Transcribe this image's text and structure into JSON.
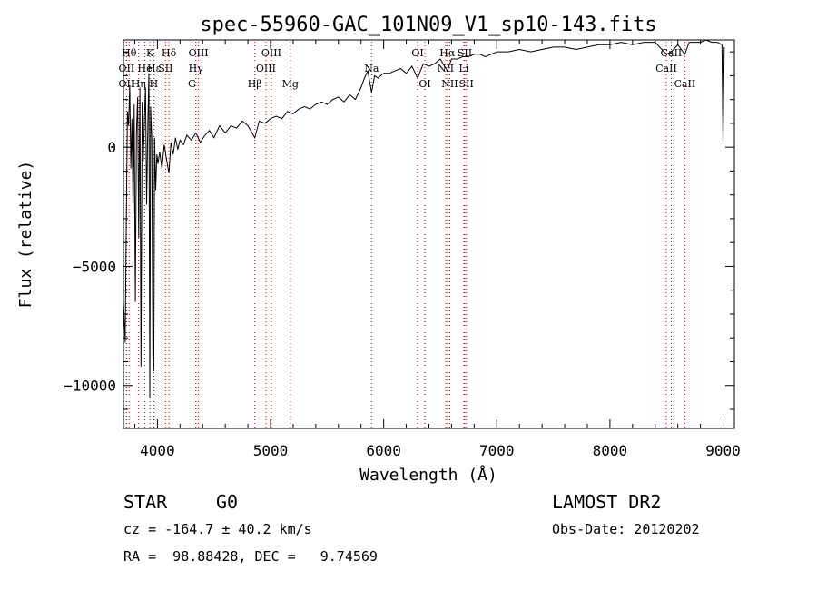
{
  "chart_data": {
    "type": "line",
    "title": "spec-55960-GAC_101N09_V1_sp10-143.fits",
    "xlabel": "Wavelength (Å)",
    "ylabel": "Flux (relative)",
    "xlim": [
      3700,
      9100
    ],
    "ylim": [
      -11800,
      4500
    ],
    "xticks": [
      4000,
      5000,
      6000,
      7000,
      8000,
      9000
    ],
    "yticks": [
      0,
      -5000,
      -10000
    ],
    "grid": false,
    "line_color": "#000000",
    "marker_color": "#cc0000",
    "series": [
      {
        "x": [
          3700,
          3715,
          3725,
          3735,
          3745,
          3755,
          3765,
          3775,
          3785,
          3795,
          3805,
          3815,
          3825,
          3835,
          3845,
          3855,
          3865,
          3875,
          3885,
          3895,
          3905,
          3915,
          3925,
          3933,
          3940,
          3950,
          3960,
          3968,
          3975,
          3985,
          3995,
          4005,
          4020,
          4040,
          4060,
          4080,
          4102,
          4120,
          4140,
          4160,
          4180,
          4200,
          4230,
          4260,
          4300,
          4340,
          4380,
          4420,
          4460,
          4500,
          4550,
          4600,
          4650,
          4700,
          4750,
          4800,
          4861,
          4900,
          4950,
          5000,
          5050,
          5100,
          5150,
          5200,
          5250,
          5300,
          5350,
          5400,
          5450,
          5500,
          5550,
          5600,
          5650,
          5700,
          5750,
          5780,
          5800,
          5830,
          5860,
          5893,
          5920,
          5950,
          6000,
          6050,
          6100,
          6150,
          6200,
          6250,
          6300,
          6350,
          6400,
          6450,
          6500,
          6563,
          6600,
          6650,
          6700,
          6750,
          6800,
          6850,
          6900,
          7000,
          7100,
          7200,
          7300,
          7400,
          7500,
          7600,
          7700,
          7800,
          7900,
          8000,
          8100,
          8200,
          8300,
          8400,
          8498,
          8542,
          8600,
          8662,
          8700,
          8800,
          8850,
          8900,
          8950,
          8990,
          9000,
          9010
        ],
        "y": [
          -6500,
          -8200,
          -3200,
          1500,
          900,
          2600,
          -900,
          1200,
          -2800,
          1800,
          -6500,
          600,
          2100,
          -3800,
          2500,
          -9200,
          1900,
          -600,
          1200,
          2500,
          -2400,
          800,
          3100,
          -10500,
          1700,
          300,
          -8800,
          -9400,
          400,
          -1800,
          -300,
          -700,
          -200,
          -900,
          100,
          -500,
          -1100,
          200,
          -300,
          400,
          -100,
          300,
          100,
          500,
          300,
          600,
          200,
          500,
          700,
          400,
          900,
          600,
          900,
          800,
          1100,
          900,
          400,
          1100,
          1000,
          1200,
          1300,
          1200,
          1500,
          1400,
          1600,
          1700,
          1600,
          1800,
          1900,
          1800,
          2000,
          2100,
          1900,
          2200,
          2000,
          2300,
          2500,
          2900,
          3200,
          2300,
          3000,
          2900,
          3100,
          3100,
          3200,
          3300,
          3100,
          3400,
          2900,
          3500,
          3400,
          3500,
          3700,
          3200,
          3700,
          3700,
          3800,
          3800,
          3900,
          3900,
          3800,
          4000,
          4000,
          4100,
          4000,
          4100,
          4200,
          4200,
          4100,
          4200,
          4300,
          4300,
          4400,
          4300,
          4400,
          4400,
          3900,
          4000,
          4300,
          3900,
          4400,
          4400,
          4500,
          4400,
          4400,
          4300,
          100,
          4200
        ]
      }
    ],
    "lines": [
      {
        "label": "OII",
        "x": 3727,
        "row": 2
      },
      {
        "label": "OII",
        "x": 3727,
        "row": 3
      },
      {
        "label": "Hθ",
        "x": 3750,
        "row": 1
      },
      {
        "label": "Hη",
        "x": 3835,
        "row": 3
      },
      {
        "label": "He",
        "x": 3889,
        "row": 2
      },
      {
        "label": "Hε",
        "x": 3970,
        "row": 2
      },
      {
        "label": "K",
        "x": 3934,
        "row": 1
      },
      {
        "label": "H",
        "x": 3968,
        "row": 3
      },
      {
        "label": "SII",
        "x": 4072,
        "row": 2
      },
      {
        "label": "Hδ",
        "x": 4102,
        "row": 1
      },
      {
        "label": "OIII",
        "x": 4363,
        "row": 1
      },
      {
        "label": "Hγ",
        "x": 4340,
        "row": 2
      },
      {
        "label": "G",
        "x": 4305,
        "row": 3
      },
      {
        "label": "Hβ",
        "x": 4861,
        "row": 3
      },
      {
        "label": "OIII",
        "x": 5007,
        "row": 1
      },
      {
        "label": "OIII",
        "x": 4959,
        "row": 2
      },
      {
        "label": "Mg",
        "x": 5175,
        "row": 3
      },
      {
        "label": "Na",
        "x": 5893,
        "row": 2
      },
      {
        "label": "OI",
        "x": 6300,
        "row": 1
      },
      {
        "label": "OI",
        "x": 6364,
        "row": 3
      },
      {
        "label": "Hα",
        "x": 6563,
        "row": 1
      },
      {
        "label": "NII",
        "x": 6548,
        "row": 2
      },
      {
        "label": "NII",
        "x": 6584,
        "row": 3
      },
      {
        "label": "SII",
        "x": 6717,
        "row": 1
      },
      {
        "label": "Li",
        "x": 6708,
        "row": 2
      },
      {
        "label": "SII",
        "x": 6731,
        "row": 3
      },
      {
        "label": "CaII",
        "x": 8498,
        "row": 2
      },
      {
        "label": "CaII",
        "x": 8542,
        "row": 1
      },
      {
        "label": "CaII",
        "x": 8662,
        "row": 3
      }
    ]
  },
  "info": {
    "object_class": "STAR",
    "subclass": "G0",
    "release": "LAMOST DR2",
    "redshift_line": "cz = -164.7 ± 40.2 km/s",
    "obs_date": "Obs-Date: 20120202",
    "coords": "RA =  98.88428, DEC =   9.74569"
  }
}
